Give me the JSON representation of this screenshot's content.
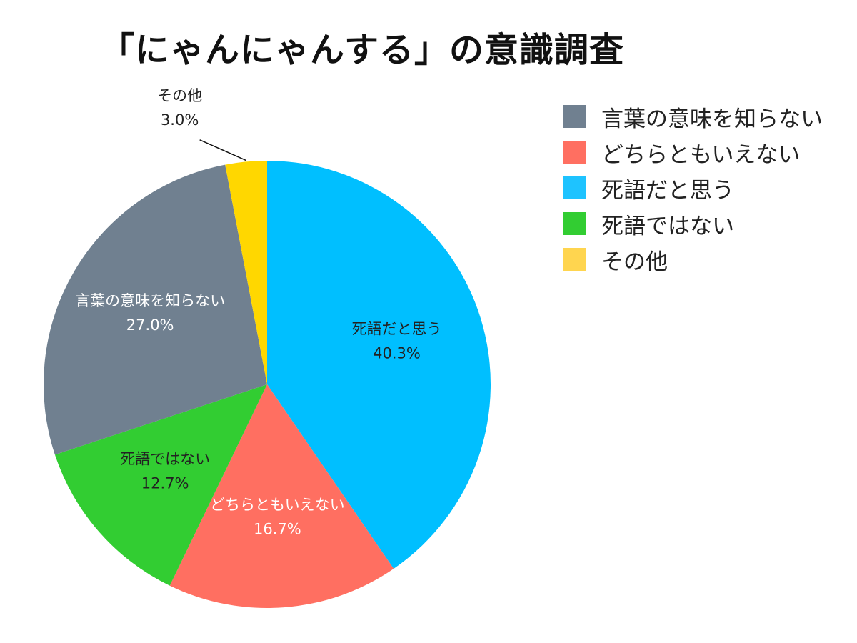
{
  "chart_data": {
    "type": "pie",
    "title": "「にゃんにゃんする」の意識調査",
    "start_angle_deg": 0,
    "direction": "clockwise",
    "legend_position": "top-right",
    "slices": [
      {
        "label": "死語だと思う",
        "value": 40.3,
        "value_label": "40.3%",
        "color": "#00BFFF",
        "label_color": "#222222"
      },
      {
        "label": "どちらともいえない",
        "value": 16.7,
        "value_label": "16.7%",
        "color": "#FF6F61",
        "label_color": "#ffffff"
      },
      {
        "label": "死語ではない",
        "value": 12.7,
        "value_label": "12.7%",
        "color": "#32CD32",
        "label_color": "#222222"
      },
      {
        "label": "言葉の意味を知らない",
        "value": 27.0,
        "value_label": "27.0%",
        "color": "#708090",
        "label_color": "#ffffff"
      },
      {
        "label": "その他",
        "value": 3.0,
        "value_label": "3.0%",
        "color": "#FFD700",
        "label_color": "#222222"
      }
    ],
    "legend": [
      {
        "label": "言葉の意味を知らない",
        "color": "#708090"
      },
      {
        "label": "どちらともいえない",
        "color": "#FF6F61"
      },
      {
        "label": "死語だと思う",
        "color": "#1EC3FF"
      },
      {
        "label": "死語ではない",
        "color": "#32CD32"
      },
      {
        "label": "その他",
        "color": "#FFD54F"
      }
    ]
  }
}
